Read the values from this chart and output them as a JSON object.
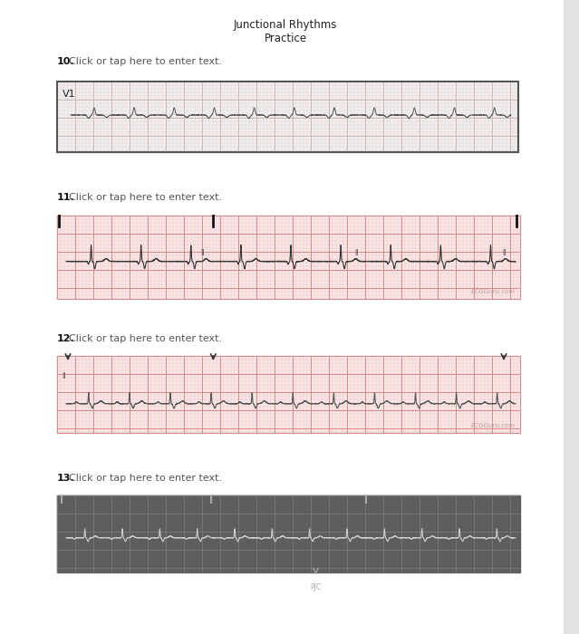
{
  "title_line1": "Junctional Rhythms",
  "title_line2": "Practice",
  "label_10": "10.",
  "label_10_text": "Click or tap here to enter text.",
  "label_11": "11.",
  "label_11_text": "Click or tap here to enter text.",
  "label_12": "12.",
  "label_12_text": "Click or tap here to enter text.",
  "label_13": "13.",
  "label_13_text": "Click or tap here to enter text.",
  "page_white": "#ffffff",
  "page_bg": "#f0f0f0",
  "sidebar_color": "#e2e2e2",
  "title_color": "#222222",
  "label_bold_color": "#111111",
  "label_text_color": "#555555",
  "ecg1_bg": "#f2eeee",
  "ecg1_grid_minor": "#ddd0d0",
  "ecg1_grid_major": "#c8b8b8",
  "ecg1_border": "#555555",
  "ecg1_line": "#555555",
  "ecg2_bg": "#fae8e8",
  "ecg2_grid_minor": "#f0b8b8",
  "ecg2_grid_major": "#e08888",
  "ecg2_border": "#d09090",
  "ecg2_line": "#333333",
  "ecg2_tick": "#111111",
  "ecg2_watermark": "#c0a0a0",
  "ecg3_bg": "#fae8e8",
  "ecg3_grid_minor": "#f0b8b8",
  "ecg3_grid_major": "#e08888",
  "ecg3_border": "#d09090",
  "ecg3_line": "#555555",
  "ecg3_arrow": "#333333",
  "ecg3_watermark": "#c0a0a0",
  "ecg4_bg": "#5c5c5c",
  "ecg4_grid_minor": "#696969",
  "ecg4_grid_major": "#7a7a7a",
  "ecg4_line": "#cccccc",
  "ecg4_tick": "#aaaaaa",
  "ecg4_label": "#aaaaaa",
  "watermark_text": "ECGGuru.com",
  "pjc_text": "PJC",
  "v1_text": "V1",
  "ii_text": "II"
}
